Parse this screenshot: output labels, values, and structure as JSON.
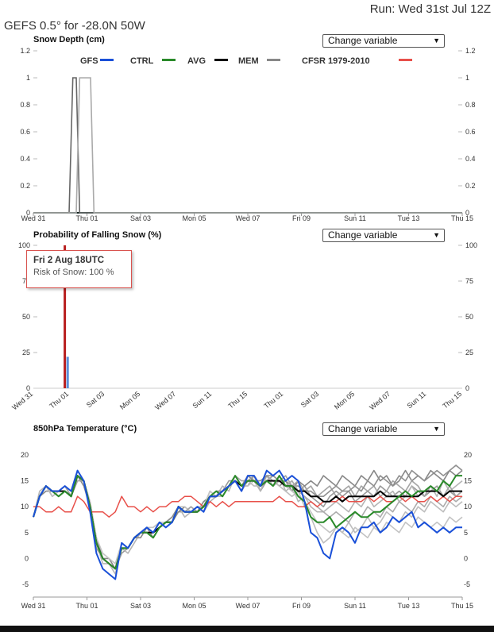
{
  "header": {
    "run_label": "Run: Wed 31st Jul 12Z",
    "location_title": "GEFS 0.5° for -28.0N 50W"
  },
  "controls": {
    "change_variable_label": "Change variable"
  },
  "legend": [
    {
      "name": "GFS",
      "color": "#1a50d8"
    },
    {
      "name": "CTRL",
      "color": "#2a8a2a"
    },
    {
      "name": "AVG",
      "color": "#000000"
    },
    {
      "name": "MEM",
      "color": "#888888"
    },
    {
      "name": "CFSR 1979-2010",
      "color": "#e8504a"
    }
  ],
  "tooltip": {
    "date": "Fri 2 Aug 18UTC",
    "risk": "Risk of Snow: 100 %"
  },
  "chart_data": [
    {
      "type": "line",
      "title": "Snow Depth (cm)",
      "x_ticks": [
        "Wed 31",
        "Thu 01",
        "Sat 03",
        "Mon 05",
        "Wed 07",
        "Fri 09",
        "Sun 11",
        "Tue 13",
        "Thu 15"
      ],
      "x_range_days": [
        0,
        15
      ],
      "ylim": [
        0,
        1.2
      ],
      "y_ticks": [
        "0",
        "0.2",
        "0.4",
        "0.6",
        "0.8",
        "1",
        "1.2"
      ],
      "series": [
        {
          "name": "GFS",
          "color": "#1a50d8",
          "points": [
            [
              0,
              0
            ],
            [
              15,
              0
            ]
          ]
        },
        {
          "name": "CTRL",
          "color": "#2a8a2a",
          "points": [
            [
              0,
              0
            ],
            [
              15,
              0
            ]
          ]
        },
        {
          "name": "AVG",
          "color": "#000000",
          "points": [
            [
              0,
              0
            ],
            [
              15,
              0
            ]
          ]
        },
        {
          "name": "MEM",
          "color": "#666666",
          "points": [
            [
              0,
              0
            ],
            [
              1.25,
              0
            ],
            [
              1.38,
              1
            ],
            [
              1.5,
              1
            ],
            [
              1.62,
              0
            ],
            [
              15,
              0
            ]
          ]
        },
        {
          "name": "MEM",
          "color": "#aaaaaa",
          "points": [
            [
              0,
              0
            ],
            [
              1.5,
              0
            ],
            [
              1.62,
              1
            ],
            [
              2,
              1
            ],
            [
              2.12,
              0
            ],
            [
              15,
              0
            ]
          ]
        }
      ]
    },
    {
      "type": "bar",
      "title": "Probability of Falling Snow (%)",
      "x_ticks": [
        "Wed 31",
        "Thu 01",
        "Sat 03",
        "Mon 05",
        "Wed 07",
        "Sun 11",
        "Thu 15",
        "Thu 01",
        "Sat 03",
        "Mon 05",
        "Wed 07",
        "Sun 11",
        "Thu 15"
      ],
      "ylim": [
        0,
        100
      ],
      "y_ticks": [
        "0",
        "25",
        "50",
        "75",
        "100"
      ],
      "bars": [
        {
          "x": 1.1,
          "value": 100,
          "color": "#b81e1e"
        },
        {
          "x": 1.2,
          "value": 22,
          "color": "#5b8fd8"
        }
      ]
    },
    {
      "type": "line",
      "title": "850hPa Temperature (°C)",
      "x_ticks": [
        "Wed 31",
        "Thu 01",
        "Sat 03",
        "Mon 05",
        "Wed 07",
        "Fri 09",
        "Sun 11",
        "Tue 13",
        "Thu 15"
      ],
      "x_range_days": [
        0,
        15
      ],
      "ylim": [
        -7,
        21
      ],
      "y_ticks": [
        "-5",
        "0",
        "5",
        "10",
        "15",
        "20"
      ],
      "series": [
        {
          "name": "GFS",
          "color": "#1a50d8",
          "width": 2,
          "values": [
            8,
            12,
            14,
            13,
            13,
            14,
            13,
            17,
            15,
            9,
            1,
            -2,
            -3,
            -4,
            3,
            2,
            4,
            5,
            6,
            5,
            7,
            6,
            7,
            10,
            9,
            9,
            10,
            9,
            12,
            12,
            13,
            14,
            15,
            13,
            16,
            16,
            14,
            17,
            16,
            17,
            15,
            16,
            15,
            11,
            5,
            4,
            1,
            0,
            5,
            6,
            5,
            3,
            6,
            6,
            7,
            5,
            6,
            8,
            7,
            8,
            9,
            6,
            7,
            6,
            5,
            6,
            5,
            6,
            6
          ]
        },
        {
          "name": "CTRL",
          "color": "#2a8a2a",
          "width": 2,
          "values": [
            8,
            12,
            14,
            13,
            12,
            13,
            12,
            16,
            15,
            10,
            3,
            0,
            -1,
            -2,
            2,
            2,
            4,
            5,
            5,
            4,
            6,
            7,
            7,
            10,
            9,
            9,
            9,
            10,
            12,
            13,
            12,
            14,
            16,
            14,
            15,
            15,
            14,
            15,
            14,
            16,
            14,
            14,
            12,
            11,
            8,
            7,
            7,
            8,
            6,
            7,
            8,
            9,
            8,
            8,
            9,
            9,
            10,
            11,
            12,
            13,
            12,
            13,
            13,
            14,
            13,
            15,
            14,
            16,
            16
          ]
        },
        {
          "name": "AVG",
          "color": "#000000",
          "width": 2,
          "values": [
            8,
            12,
            14,
            13,
            13,
            13,
            12,
            16,
            15,
            10,
            3,
            0,
            -1,
            -2,
            2,
            2,
            4,
            5,
            5,
            5,
            6,
            7,
            7,
            10,
            9,
            9,
            9,
            10,
            12,
            12,
            13,
            14,
            15,
            14,
            15,
            15,
            14,
            15,
            15,
            15,
            14,
            14,
            13,
            13,
            12,
            12,
            11,
            11,
            12,
            11,
            12,
            12,
            12,
            12,
            12,
            13,
            12,
            12,
            12,
            12,
            12,
            12,
            13,
            13,
            13,
            12,
            13,
            13,
            13
          ]
        },
        {
          "name": "CFSR 1979-2010",
          "color": "#e8504a",
          "width": 1.5,
          "values": [
            10,
            10,
            9,
            9,
            10,
            9,
            9,
            12,
            11,
            9,
            9,
            9,
            8,
            9,
            12,
            10,
            10,
            9,
            10,
            9,
            10,
            10,
            11,
            11,
            12,
            12,
            11,
            10,
            11,
            10,
            11,
            10,
            11,
            11,
            11,
            11,
            11,
            11,
            11,
            12,
            11,
            11,
            10,
            10,
            11,
            10,
            11,
            11,
            11,
            12,
            11,
            11,
            11,
            12,
            11,
            12,
            11,
            11,
            12,
            11,
            12,
            11,
            11,
            12,
            11,
            12,
            11,
            12,
            12
          ]
        }
      ],
      "members": [
        {
          "values": [
            8,
            12,
            14,
            13,
            13,
            14,
            12,
            16,
            15,
            10,
            2,
            0,
            -1,
            -2,
            1,
            2,
            4,
            5,
            6,
            5,
            6,
            7,
            8,
            9,
            9,
            10,
            9,
            10,
            13,
            12,
            13,
            15,
            15,
            14,
            14,
            16,
            13,
            15,
            16,
            15,
            14,
            15,
            13,
            14,
            12,
            11,
            10,
            12,
            13,
            12,
            13,
            11,
            12,
            13,
            12,
            14,
            13,
            12,
            13,
            12,
            14,
            13,
            12,
            13,
            14,
            12,
            13,
            12,
            13
          ]
        },
        {
          "values": [
            8,
            13,
            14,
            12,
            13,
            13,
            12,
            15,
            15,
            9,
            3,
            -1,
            -1,
            -3,
            2,
            1,
            3,
            5,
            5,
            5,
            7,
            6,
            7,
            10,
            8,
            9,
            10,
            9,
            11,
            12,
            14,
            13,
            16,
            14,
            15,
            15,
            13,
            16,
            14,
            16,
            13,
            14,
            11,
            12,
            10,
            9,
            9,
            10,
            11,
            10,
            9,
            11,
            10,
            12,
            10,
            11,
            12,
            13,
            11,
            12,
            14,
            12,
            13,
            14,
            12,
            15,
            13,
            14,
            15
          ]
        },
        {
          "values": [
            8,
            12,
            13,
            13,
            12,
            13,
            12,
            16,
            14,
            10,
            4,
            0,
            0,
            -2,
            2,
            2,
            4,
            4,
            6,
            4,
            6,
            7,
            7,
            9,
            10,
            9,
            9,
            11,
            12,
            13,
            12,
            14,
            15,
            13,
            16,
            15,
            14,
            15,
            15,
            14,
            15,
            13,
            15,
            14,
            15,
            14,
            16,
            15,
            14,
            16,
            15,
            14,
            16,
            15,
            17,
            15,
            16,
            14,
            15,
            17,
            15,
            16,
            15,
            17,
            16,
            15,
            17,
            16,
            17
          ]
        },
        {
          "values": [
            8,
            12,
            14,
            13,
            13,
            13,
            12,
            16,
            15,
            11,
            4,
            1,
            0,
            -1,
            3,
            2,
            4,
            5,
            6,
            6,
            7,
            7,
            8,
            10,
            10,
            9,
            10,
            10,
            13,
            12,
            13,
            14,
            15,
            14,
            14,
            15,
            14,
            15,
            14,
            15,
            14,
            13,
            12,
            11,
            9,
            7,
            6,
            5,
            6,
            5,
            4,
            6,
            5,
            4,
            6,
            5,
            7,
            6,
            5,
            7,
            6,
            8,
            7,
            6,
            7,
            6,
            8,
            7,
            8
          ]
        },
        {
          "values": [
            8,
            12,
            14,
            13,
            13,
            14,
            12,
            15,
            15,
            10,
            3,
            0,
            -1,
            -2,
            2,
            2,
            4,
            5,
            5,
            5,
            6,
            7,
            7,
            10,
            9,
            10,
            9,
            10,
            12,
            12,
            13,
            14,
            16,
            15,
            15,
            16,
            14,
            16,
            15,
            15,
            16,
            14,
            15,
            13,
            14,
            12,
            13,
            14,
            12,
            13,
            14,
            12,
            14,
            13,
            14,
            12,
            13,
            15,
            14,
            13,
            15,
            14,
            12,
            14,
            13,
            12,
            14,
            12,
            13
          ]
        },
        {
          "values": [
            8,
            12,
            14,
            12,
            13,
            13,
            12,
            16,
            15,
            10,
            3,
            0,
            -1,
            -2,
            2,
            2,
            4,
            5,
            6,
            5,
            6,
            7,
            7,
            10,
            9,
            9,
            10,
            10,
            12,
            12,
            12,
            14,
            15,
            14,
            15,
            14,
            14,
            15,
            15,
            14,
            13,
            12,
            13,
            10,
            8,
            5,
            3,
            4,
            6,
            5,
            7,
            5,
            6,
            8,
            6,
            7,
            9,
            8,
            7,
            9,
            8,
            10,
            9,
            11,
            10,
            9,
            11,
            10,
            11
          ]
        },
        {
          "values": [
            8,
            12,
            14,
            13,
            13,
            13,
            12,
            16,
            15,
            10,
            3,
            0,
            -1,
            -2,
            2,
            2,
            4,
            5,
            5,
            5,
            6,
            7,
            8,
            10,
            9,
            9,
            9,
            10,
            12,
            13,
            13,
            14,
            15,
            14,
            16,
            15,
            15,
            16,
            16,
            15,
            15,
            14,
            14,
            13,
            13,
            12,
            12,
            13,
            14,
            13,
            13,
            14,
            13,
            15,
            14,
            16,
            15,
            14,
            16,
            15,
            17,
            16,
            15,
            16,
            17,
            16,
            17,
            18,
            17
          ]
        },
        {
          "values": [
            8,
            12,
            14,
            13,
            13,
            13,
            12,
            16,
            15,
            10,
            3,
            0,
            -1,
            -2,
            2,
            2,
            4,
            5,
            5,
            5,
            6,
            7,
            7,
            10,
            9,
            9,
            9,
            10,
            12,
            12,
            13,
            14,
            15,
            13,
            15,
            15,
            14,
            15,
            14,
            15,
            14,
            15,
            13,
            12,
            11,
            10,
            9,
            8,
            9,
            8,
            7,
            9,
            8,
            10,
            9,
            8,
            10,
            9,
            11,
            10,
            9,
            11,
            10,
            12,
            11,
            10,
            12,
            11,
            12
          ]
        }
      ]
    }
  ]
}
